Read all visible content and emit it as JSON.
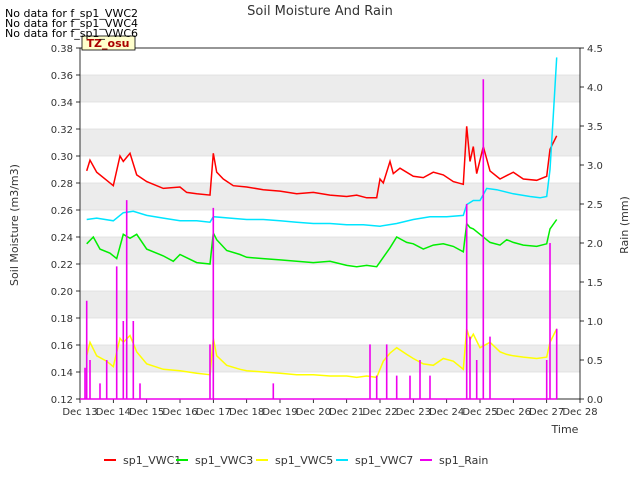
{
  "chart_data": {
    "type": "line",
    "title": "Soil Moisture And Rain",
    "xlabel": "Time",
    "ylabel_left": "Soil Moisture (m3/m3)",
    "ylabel_right": "Rain (mm)",
    "no_data_messages": [
      "No data for f_sp1_VWC2",
      "No data for f_sp1_VWC4",
      "No data for f_sp1_VWC6"
    ],
    "site_label": "TZ_osu",
    "x_ticks": [
      "Dec 13",
      "Dec 14",
      "Dec 15",
      "Dec 16",
      "Dec 17",
      "Dec 18",
      "Dec 19",
      "Dec 20",
      "Dec 21",
      "Dec 22",
      "Dec 23",
      "Dec 24",
      "Dec 25",
      "Dec 26",
      "Dec 27",
      "Dec 28"
    ],
    "x_range_days": [
      13,
      28
    ],
    "ylim_left": [
      0.12,
      0.38
    ],
    "y_ticks_left": [
      "0.12",
      "0.14",
      "0.16",
      "0.18",
      "0.20",
      "0.22",
      "0.24",
      "0.26",
      "0.28",
      "0.30",
      "0.32",
      "0.34",
      "0.36",
      "0.38"
    ],
    "ylim_right": [
      0.0,
      4.5
    ],
    "y_ticks_right": [
      "0.0",
      "0.5",
      "1.0",
      "1.5",
      "2.0",
      "2.5",
      "3.0",
      "3.5",
      "4.0",
      "4.5"
    ],
    "legend_position": "bottom",
    "series": [
      {
        "name": "sp1_VWC1",
        "color": "#ff0000",
        "axis": "left",
        "x": [
          13.2,
          13.3,
          13.5,
          13.8,
          14.0,
          14.2,
          14.3,
          14.5,
          14.7,
          15.0,
          15.5,
          16.0,
          16.2,
          16.5,
          16.9,
          17.0,
          17.1,
          17.3,
          17.6,
          18.0,
          18.5,
          19.0,
          19.5,
          20.0,
          20.5,
          21.0,
          21.3,
          21.6,
          21.9,
          22.0,
          22.1,
          22.3,
          22.4,
          22.6,
          23.0,
          23.3,
          23.6,
          23.9,
          24.2,
          24.5,
          24.6,
          24.7,
          24.8,
          24.9,
          25.1,
          25.3,
          25.6,
          26.0,
          26.3,
          26.7,
          27.0,
          27.1,
          27.3
        ],
        "y": [
          0.289,
          0.297,
          0.288,
          0.282,
          0.278,
          0.3,
          0.296,
          0.302,
          0.286,
          0.281,
          0.276,
          0.277,
          0.273,
          0.272,
          0.271,
          0.302,
          0.288,
          0.283,
          0.278,
          0.277,
          0.275,
          0.274,
          0.272,
          0.273,
          0.271,
          0.27,
          0.271,
          0.269,
          0.269,
          0.283,
          0.28,
          0.296,
          0.287,
          0.291,
          0.285,
          0.284,
          0.288,
          0.286,
          0.281,
          0.279,
          0.322,
          0.296,
          0.307,
          0.287,
          0.307,
          0.289,
          0.283,
          0.288,
          0.283,
          0.282,
          0.285,
          0.305,
          0.315
        ]
      },
      {
        "name": "sp1_VWC3",
        "color": "#00ee00",
        "axis": "left",
        "x": [
          13.2,
          13.4,
          13.6,
          13.9,
          14.1,
          14.3,
          14.5,
          14.7,
          15.0,
          15.5,
          15.8,
          16.0,
          16.5,
          16.9,
          17.0,
          17.1,
          17.4,
          17.8,
          18.0,
          18.5,
          19.0,
          19.5,
          20.0,
          20.5,
          21.0,
          21.3,
          21.6,
          21.9,
          22.1,
          22.3,
          22.5,
          22.8,
          23.0,
          23.3,
          23.6,
          23.9,
          24.2,
          24.5,
          24.6,
          24.7,
          24.8,
          25.0,
          25.3,
          25.6,
          25.8,
          26.0,
          26.3,
          26.7,
          27.0,
          27.1,
          27.3
        ],
        "y": [
          0.235,
          0.24,
          0.231,
          0.228,
          0.224,
          0.242,
          0.239,
          0.242,
          0.231,
          0.226,
          0.222,
          0.227,
          0.221,
          0.22,
          0.243,
          0.238,
          0.23,
          0.227,
          0.225,
          0.224,
          0.223,
          0.222,
          0.221,
          0.222,
          0.219,
          0.218,
          0.219,
          0.218,
          0.225,
          0.232,
          0.24,
          0.236,
          0.235,
          0.231,
          0.234,
          0.235,
          0.233,
          0.229,
          0.25,
          0.247,
          0.246,
          0.242,
          0.236,
          0.234,
          0.238,
          0.236,
          0.234,
          0.233,
          0.235,
          0.246,
          0.253
        ]
      },
      {
        "name": "sp1_VWC5",
        "color": "#ffff00",
        "axis": "left",
        "x": [
          13.2,
          13.3,
          13.5,
          13.8,
          14.0,
          14.2,
          14.3,
          14.5,
          14.7,
          15.0,
          15.5,
          16.0,
          16.5,
          16.9,
          17.0,
          17.1,
          17.4,
          17.8,
          18.0,
          18.5,
          19.0,
          19.5,
          20.0,
          20.5,
          21.0,
          21.3,
          21.6,
          21.9,
          22.1,
          22.3,
          22.5,
          22.8,
          23.0,
          23.3,
          23.6,
          23.9,
          24.2,
          24.5,
          24.6,
          24.7,
          24.8,
          25.0,
          25.3,
          25.6,
          25.8,
          26.0,
          26.3,
          26.7,
          27.0,
          27.1,
          27.3
        ],
        "y": [
          0.152,
          0.162,
          0.152,
          0.148,
          0.144,
          0.165,
          0.162,
          0.167,
          0.155,
          0.146,
          0.142,
          0.141,
          0.139,
          0.138,
          0.165,
          0.152,
          0.145,
          0.142,
          0.141,
          0.14,
          0.139,
          0.138,
          0.138,
          0.137,
          0.137,
          0.136,
          0.137,
          0.136,
          0.148,
          0.154,
          0.158,
          0.153,
          0.15,
          0.146,
          0.145,
          0.15,
          0.148,
          0.142,
          0.172,
          0.164,
          0.168,
          0.158,
          0.162,
          0.155,
          0.153,
          0.152,
          0.151,
          0.15,
          0.151,
          0.162,
          0.172
        ]
      },
      {
        "name": "sp1_VWC7",
        "color": "#00e5ff",
        "axis": "left",
        "x": [
          13.2,
          13.5,
          14.0,
          14.3,
          14.6,
          15.0,
          15.5,
          16.0,
          16.5,
          16.9,
          17.0,
          17.5,
          18.0,
          18.5,
          19.0,
          19.5,
          20.0,
          20.5,
          21.0,
          21.5,
          22.0,
          22.5,
          23.0,
          23.5,
          24.0,
          24.5,
          24.6,
          24.8,
          25.0,
          25.2,
          25.5,
          26.0,
          26.5,
          26.8,
          27.0,
          27.1,
          27.2,
          27.3
        ],
        "y": [
          0.253,
          0.254,
          0.252,
          0.258,
          0.259,
          0.256,
          0.254,
          0.252,
          0.252,
          0.251,
          0.255,
          0.254,
          0.253,
          0.253,
          0.252,
          0.251,
          0.25,
          0.25,
          0.249,
          0.249,
          0.248,
          0.25,
          0.253,
          0.255,
          0.255,
          0.256,
          0.264,
          0.267,
          0.267,
          0.276,
          0.275,
          0.272,
          0.27,
          0.269,
          0.27,
          0.29,
          0.33,
          0.373
        ]
      },
      {
        "name": "sp1_Rain",
        "color": "#ee00ee",
        "axis": "right",
        "x": [
          13.15,
          13.2,
          13.3,
          13.6,
          13.8,
          14.1,
          14.3,
          14.4,
          14.6,
          14.8,
          16.9,
          17.0,
          18.8,
          21.7,
          21.9,
          22.2,
          22.5,
          22.9,
          23.2,
          23.5,
          24.6,
          24.7,
          24.9,
          25.1,
          25.3,
          27.0,
          27.1,
          27.3
        ],
        "y": [
          0.4,
          1.26,
          0.5,
          0.2,
          0.5,
          1.7,
          1.0,
          2.55,
          1.0,
          0.2,
          0.7,
          2.45,
          0.2,
          0.7,
          0.3,
          0.7,
          0.3,
          0.3,
          0.5,
          0.3,
          2.5,
          0.8,
          0.5,
          4.1,
          0.8,
          0.5,
          2.0,
          0.9
        ]
      }
    ]
  }
}
